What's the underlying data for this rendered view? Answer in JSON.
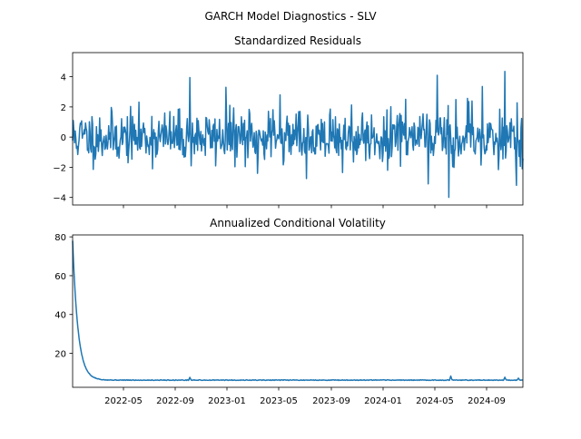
{
  "figure": {
    "title": "GARCH Model Diagnostics - SLV"
  },
  "chart_data": [
    {
      "type": "line",
      "title": "Standardized Residuals",
      "xlabel": "",
      "ylabel": "",
      "ylim": [
        -4.5,
        5.6
      ],
      "y_ticks": [
        -4,
        -2,
        0,
        2,
        4
      ],
      "y_tick_labels": [
        "−4",
        "−2",
        "0",
        "2",
        "4"
      ],
      "x_tick_labels_shown": false,
      "grid": false,
      "series": [
        {
          "color": "#1f77b4",
          "n_points": 700,
          "seed": 11,
          "baseline": 0,
          "spread": 0.85,
          "peaks": [
            {
              "x": 0.26,
              "y": 3.95
            },
            {
              "x": 0.34,
              "y": 3.3
            },
            {
              "x": 0.41,
              "y": -2.4
            },
            {
              "x": 0.46,
              "y": 2.8
            },
            {
              "x": 0.52,
              "y": -2.75
            },
            {
              "x": 0.6,
              "y": -2.35
            },
            {
              "x": 0.7,
              "y": -2.2
            },
            {
              "x": 0.74,
              "y": 2.5
            },
            {
              "x": 0.79,
              "y": -3.1
            },
            {
              "x": 0.81,
              "y": 4.1
            },
            {
              "x": 0.836,
              "y": -4.0
            },
            {
              "x": 0.88,
              "y": 2.35
            },
            {
              "x": 0.91,
              "y": 3.35
            },
            {
              "x": 0.96,
              "y": 4.35
            },
            {
              "x": 0.985,
              "y": -3.2
            },
            {
              "x": 0.998,
              "y": -2.1
            }
          ]
        }
      ]
    },
    {
      "type": "line",
      "title": "Annualized Conditional Volatility",
      "xlabel": "",
      "ylabel": "",
      "ylim": [
        2.5,
        81
      ],
      "y_ticks": [
        20,
        40,
        60,
        80
      ],
      "y_tick_labels": [
        "20",
        "40",
        "60",
        "80"
      ],
      "x_tick_labels": [
        "2022-05",
        "2022-09",
        "2023-01",
        "2023-05",
        "2023-09",
        "2024-01",
        "2024-05",
        "2024-09"
      ],
      "grid": false,
      "series": [
        {
          "color": "#1f77b4",
          "start_value": 78,
          "baseline": 6.2,
          "decay": 0.012,
          "noise": 0.35,
          "n_points": 700,
          "seed": 5,
          "bumps": [
            {
              "x": 0.26,
              "y": 7.6
            },
            {
              "x": 0.84,
              "y": 8.3
            },
            {
              "x": 0.96,
              "y": 7.7
            },
            {
              "x": 0.99,
              "y": 7.2
            }
          ]
        }
      ]
    }
  ]
}
